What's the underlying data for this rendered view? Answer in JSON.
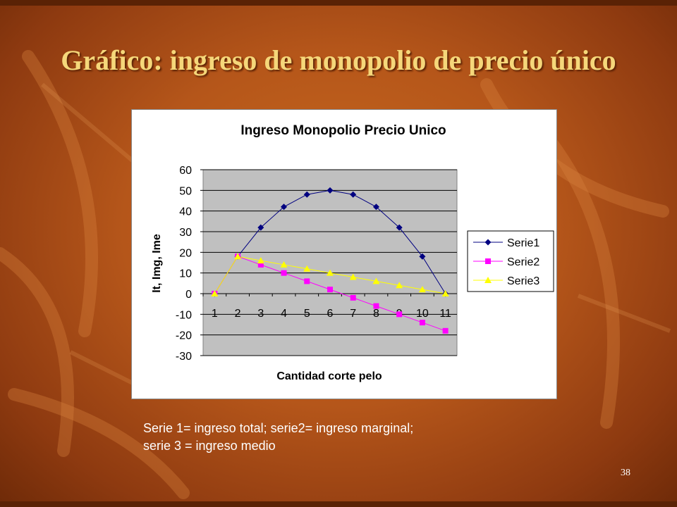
{
  "slide": {
    "title": "Gráfico: ingreso de monopolio de precio único",
    "caption_line1": "Serie 1= ingreso total; serie2= ingreso marginal;",
    "caption_line2": "serie 3 = ingreso medio",
    "page_number": "38"
  },
  "colors": {
    "background": "#b5561a",
    "title": "#f5d77a",
    "plot_area": "#c0c0c0",
    "serie1": "#000080",
    "serie2": "#ff00ff",
    "serie3": "#ffff00"
  },
  "chart_data": {
    "type": "line",
    "title": "Ingreso Monopolio Precio Unico",
    "xlabel": "Cantidad corte pelo",
    "ylabel": "It, Img, Ime",
    "categories": [
      1,
      2,
      3,
      4,
      5,
      6,
      7,
      8,
      9,
      10,
      11
    ],
    "ylim": [
      -30,
      60
    ],
    "yticks": [
      60,
      50,
      40,
      30,
      20,
      10,
      0,
      -10,
      -20,
      -30
    ],
    "grid": true,
    "legend_position": "right",
    "series": [
      {
        "name": "Serie1",
        "marker": "diamond",
        "values": [
          0,
          18,
          32,
          42,
          48,
          50,
          48,
          42,
          32,
          18,
          0
        ]
      },
      {
        "name": "Serie2",
        "marker": "square",
        "values": [
          0,
          18,
          14,
          10,
          6,
          2,
          -2,
          -6,
          -10,
          -14,
          -18
        ]
      },
      {
        "name": "Serie3",
        "marker": "triangle",
        "values": [
          0,
          18,
          16,
          14,
          12,
          10,
          8,
          6,
          4,
          2,
          0
        ]
      }
    ]
  }
}
